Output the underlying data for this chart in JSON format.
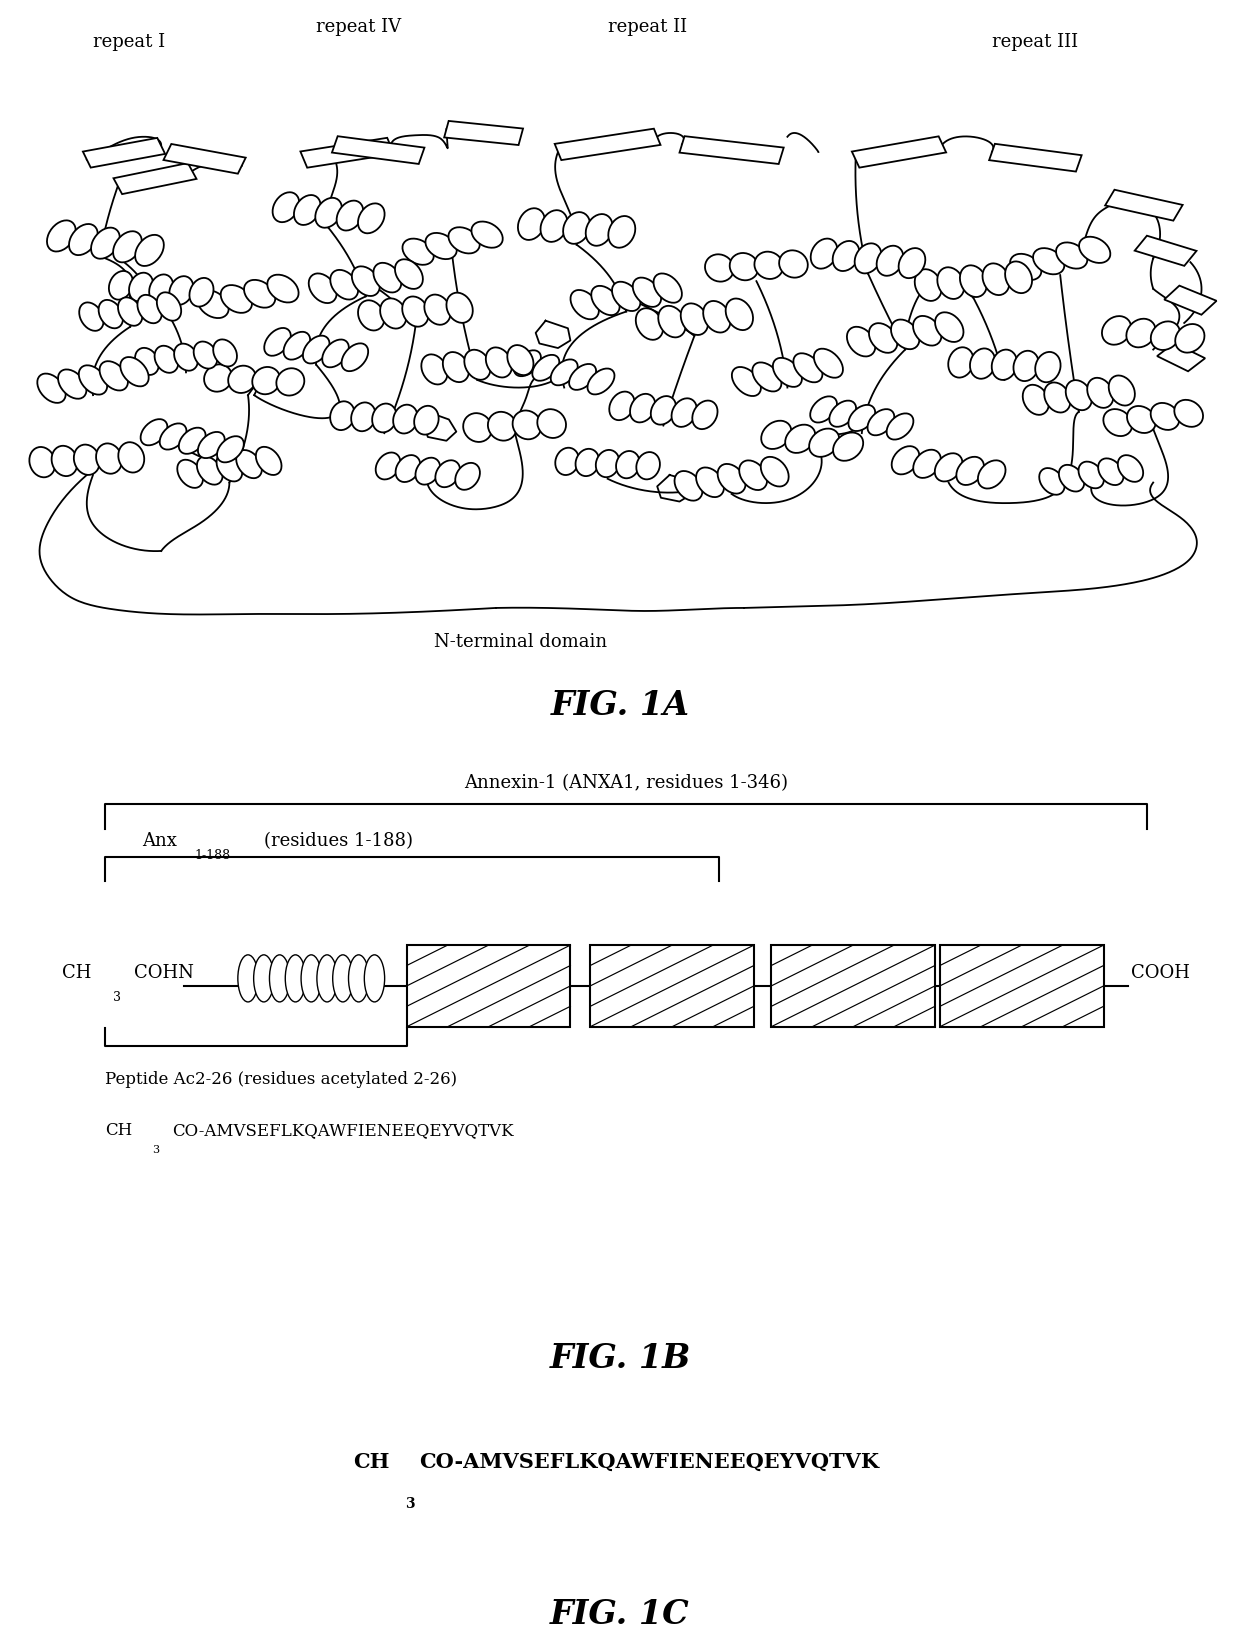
{
  "repeat_I_text": "repeat I",
  "repeat_II_text": "repeat II",
  "repeat_III_text": "repeat III",
  "repeat_IV_text": "repeat IV",
  "N_terminal_text": "N-terminal domain",
  "fig1a_caption": "FIG. 1A",
  "fig1b_caption": "FIG. 1B",
  "fig1c_caption": "FIG. 1C",
  "annexin_label": "Annexin-1 (ANXA1, residues 1-346)",
  "anx_main": "Anx",
  "anx_sub": "1-188",
  "anx_suffix": " (residues 1-188)",
  "peptide_label": "Peptide Ac2-26 (residues acetylated 2-26)",
  "peptide_seq": "CO-AMVSEFLKQAWFIENEEQEYVQTVK",
  "background_color": "#ffffff"
}
